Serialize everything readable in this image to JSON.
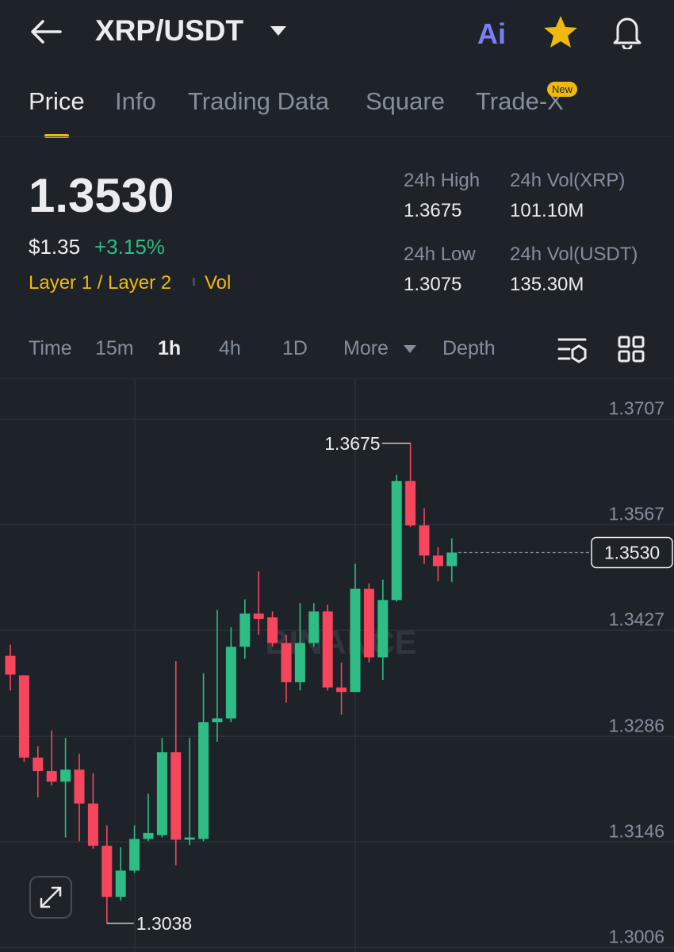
{
  "header": {
    "pair": "XRP/USDT",
    "ai": "Ai"
  },
  "tabs": {
    "items": [
      "Price",
      "Info",
      "Trading Data",
      "Square",
      "Trade-X"
    ],
    "active": 0,
    "badge": "New"
  },
  "ticker": {
    "price": "1.3530",
    "usd": "$1.35",
    "change": "+3.15%",
    "category": "Layer 1 / Layer 2",
    "vol": "Vol",
    "stats": [
      {
        "label": "24h High",
        "value": "1.3675"
      },
      {
        "label": "24h Vol(XRP)",
        "value": "101.10M"
      },
      {
        "label": "24h Low",
        "value": "1.3075"
      },
      {
        "label": "24h Vol(USDT)",
        "value": "135.30M"
      }
    ]
  },
  "intervals": {
    "items": [
      "Time",
      "15m",
      "1h",
      "4h",
      "1D",
      "More",
      "Depth"
    ],
    "active": 2
  },
  "chart_data": {
    "type": "candlestick",
    "candles": [
      {
        "open": 1.3393,
        "high": 1.3408,
        "low": 1.3347,
        "close": 1.3368
      },
      {
        "open": 1.3367,
        "high": 1.3367,
        "low": 1.3252,
        "close": 1.3258
      },
      {
        "open": 1.3258,
        "high": 1.3273,
        "low": 1.3205,
        "close": 1.324
      },
      {
        "open": 1.324,
        "high": 1.3294,
        "low": 1.3221,
        "close": 1.3226
      },
      {
        "open": 1.3226,
        "high": 1.3284,
        "low": 1.3152,
        "close": 1.3242
      },
      {
        "open": 1.3242,
        "high": 1.3263,
        "low": 1.3147,
        "close": 1.3197
      },
      {
        "open": 1.3197,
        "high": 1.3237,
        "low": 1.3137,
        "close": 1.3141
      },
      {
        "open": 1.3141,
        "high": 1.3168,
        "low": 1.3038,
        "close": 1.3073
      },
      {
        "open": 1.3073,
        "high": 1.3139,
        "low": 1.3068,
        "close": 1.3108
      },
      {
        "open": 1.3108,
        "high": 1.3168,
        "low": 1.3105,
        "close": 1.315
      },
      {
        "open": 1.315,
        "high": 1.321,
        "low": 1.3147,
        "close": 1.3158
      },
      {
        "open": 1.3155,
        "high": 1.3284,
        "low": 1.3152,
        "close": 1.3265
      },
      {
        "open": 1.3265,
        "high": 1.3386,
        "low": 1.3115,
        "close": 1.3149
      },
      {
        "open": 1.3149,
        "high": 1.3284,
        "low": 1.3142,
        "close": 1.3152
      },
      {
        "open": 1.315,
        "high": 1.337,
        "low": 1.3147,
        "close": 1.3305
      },
      {
        "open": 1.3305,
        "high": 1.3454,
        "low": 1.3279,
        "close": 1.331
      },
      {
        "open": 1.331,
        "high": 1.3431,
        "low": 1.3305,
        "close": 1.3405
      },
      {
        "open": 1.3405,
        "high": 1.3468,
        "low": 1.3389,
        "close": 1.3449
      },
      {
        "open": 1.3449,
        "high": 1.3505,
        "low": 1.3421,
        "close": 1.3442
      },
      {
        "open": 1.3444,
        "high": 1.3452,
        "low": 1.3405,
        "close": 1.341
      },
      {
        "open": 1.341,
        "high": 1.3421,
        "low": 1.3331,
        "close": 1.3358
      },
      {
        "open": 1.3358,
        "high": 1.3463,
        "low": 1.3347,
        "close": 1.341
      },
      {
        "open": 1.341,
        "high": 1.3463,
        "low": 1.3405,
        "close": 1.3452
      },
      {
        "open": 1.3452,
        "high": 1.3461,
        "low": 1.3347,
        "close": 1.3351
      },
      {
        "open": 1.3351,
        "high": 1.3384,
        "low": 1.3315,
        "close": 1.3345
      },
      {
        "open": 1.3345,
        "high": 1.3515,
        "low": 1.3345,
        "close": 1.3482
      },
      {
        "open": 1.3482,
        "high": 1.3489,
        "low": 1.3384,
        "close": 1.3391
      },
      {
        "open": 1.3391,
        "high": 1.3494,
        "low": 1.3361,
        "close": 1.3467
      },
      {
        "open": 1.3467,
        "high": 1.3633,
        "low": 1.3465,
        "close": 1.3625
      },
      {
        "open": 1.3625,
        "high": 1.3675,
        "low": 1.3564,
        "close": 1.3566
      },
      {
        "open": 1.3566,
        "high": 1.3589,
        "low": 1.3515,
        "close": 1.3526
      },
      {
        "open": 1.3526,
        "high": 1.3537,
        "low": 1.3492,
        "close": 1.3512
      },
      {
        "open": 1.3512,
        "high": 1.3549,
        "low": 1.3491,
        "close": 1.353
      }
    ],
    "ylim": [
      1.3,
      1.376
    ],
    "yticks": [
      1.3707,
      1.3567,
      1.3427,
      1.3286,
      1.3146,
      1.3006
    ],
    "grid": true,
    "up_color": "#2ebd85",
    "down_color": "#f6465d",
    "last_price": {
      "value": 1.353,
      "label": "1.3530"
    },
    "watermark": "BINANCE"
  }
}
